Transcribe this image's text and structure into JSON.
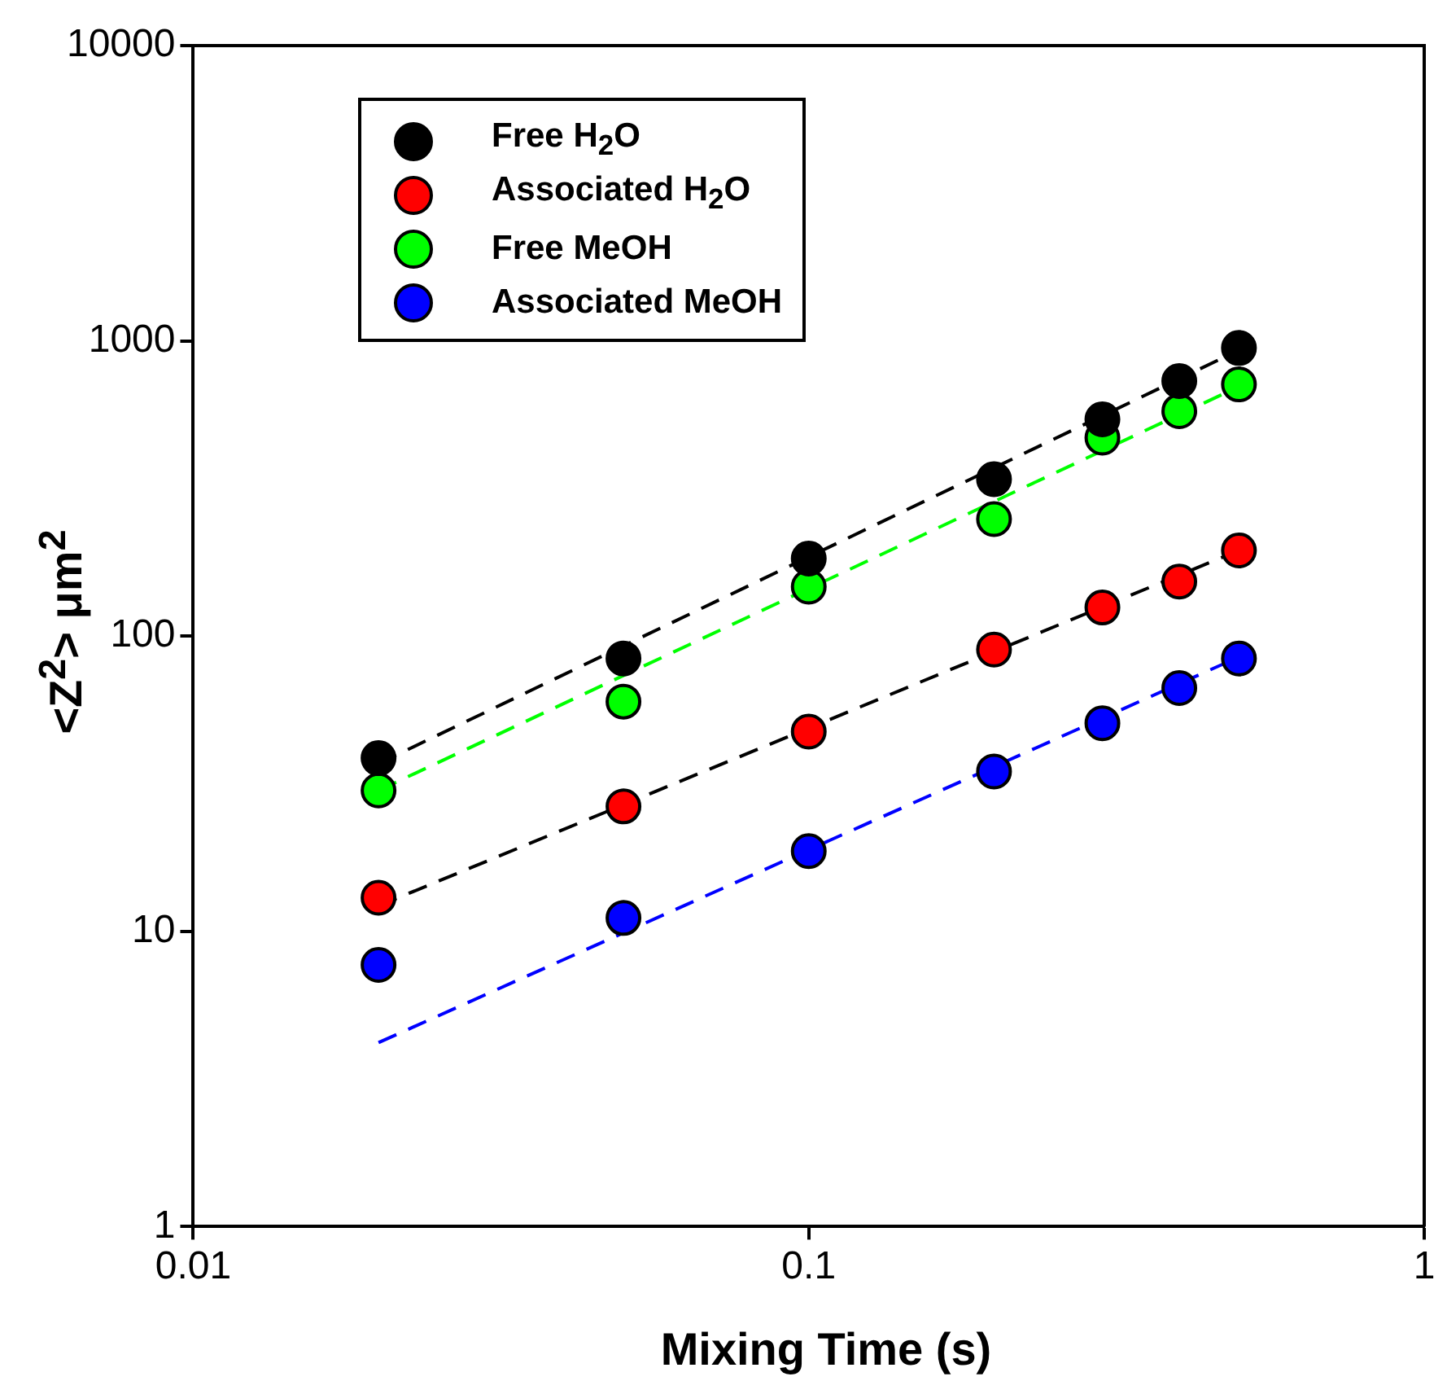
{
  "chart_data": {
    "type": "scatter",
    "xlabel": "Mixing Time (s)",
    "ylabel": "<Z$^{2}$> μm$^{2}$",
    "log": "xy",
    "xlim": [
      0.01,
      1
    ],
    "xticks": [
      0.01,
      0.1,
      1
    ],
    "ylim": [
      1,
      10000
    ],
    "yticks": [
      1,
      10,
      100,
      1000,
      10000
    ],
    "legend": "top left",
    "marker": "circle",
    "series": [
      {
        "name": "Free H$_{2}$O",
        "color": "#000000",
        "x": [
          0.02,
          0.05,
          0.1,
          0.2,
          0.3,
          0.4,
          0.5
        ],
        "values": [
          38.6,
          84,
          183,
          340,
          542,
          731,
          946
        ]
      },
      {
        "name": "Associated H$_{2}$O",
        "color": "#ff0000",
        "x": [
          0.02,
          0.05,
          0.1,
          0.2,
          0.3,
          0.4,
          0.5
        ],
        "values": [
          13,
          26.5,
          47.5,
          90,
          125,
          153,
          195
        ]
      },
      {
        "name": "Free MeOH",
        "color": "#00ff00",
        "x": [
          0.02,
          0.05,
          0.1,
          0.2,
          0.3,
          0.4,
          0.5
        ],
        "values": [
          30,
          60,
          147,
          249,
          470,
          578,
          712
        ]
      },
      {
        "name": "Associated MeOH",
        "color": "#0000ff",
        "x": [
          0.02,
          0.05,
          0.1,
          0.2,
          0.3,
          0.4,
          0.5
        ],
        "values": [
          7.7,
          11.1,
          18.7,
          34.8,
          50.7,
          66.7,
          84
        ]
      },
      {
        "type": "line",
        "color": "#000000",
        "x": [
          0.02,
          0.5
        ],
        "values": [
          37,
          930
        ],
        "marker": "none",
        "line_style": "dashed"
      },
      {
        "type": "line",
        "color": "#00ff00",
        "x": [
          0.02,
          0.5
        ],
        "values": [
          30,
          700
        ],
        "marker": "none",
        "line_style": "dashed"
      },
      {
        "type": "line",
        "color": "#000000",
        "x": [
          0.02,
          0.5
        ],
        "values": [
          12.2,
          195
        ],
        "marker": "none",
        "line_style": "dashed"
      },
      {
        "type": "line",
        "color": "#0000ff",
        "x": [
          0.02,
          0.5
        ],
        "values": [
          4.2,
          85
        ],
        "marker": "none",
        "line_style": "dashed"
      }
    ]
  }
}
